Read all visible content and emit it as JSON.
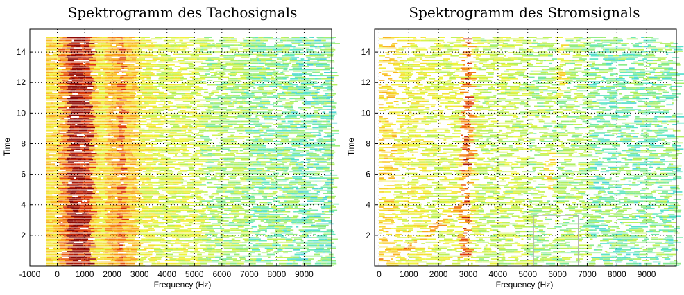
{
  "chart_data": [
    {
      "type": "heatmap",
      "title": "Spektrogramm des Tachosignals",
      "xlabel": "Frequency (Hz)",
      "ylabel": "Time",
      "xlim": [
        -1000,
        10000
      ],
      "ylim": [
        0,
        15.5
      ],
      "xticks": [
        "-1000",
        "0",
        "1000",
        "2000",
        "3000",
        "4000",
        "5000",
        "6000",
        "7000",
        "8000",
        "9000"
      ],
      "yticks": [
        "2",
        "4",
        "6",
        "8",
        "10",
        "12",
        "14"
      ],
      "grid": true,
      "data_range": {
        "x": [
          0,
          10000
        ],
        "y": [
          0,
          15
        ]
      },
      "bands": [
        {
          "x0": -400,
          "x1": 0,
          "level": 0.55
        },
        {
          "x0": 0,
          "x1": 320,
          "level": 0.75
        },
        {
          "x0": 320,
          "x1": 750,
          "level": 1.0
        },
        {
          "x0": 750,
          "x1": 1150,
          "level": 0.92
        },
        {
          "x0": 1150,
          "x1": 1350,
          "level": 0.6
        },
        {
          "x0": 1350,
          "x1": 1700,
          "level": 0.5
        },
        {
          "x0": 1700,
          "x1": 2150,
          "level": 0.65
        },
        {
          "x0": 2150,
          "x1": 2350,
          "level": 0.8
        },
        {
          "x0": 2350,
          "x1": 2800,
          "level": 0.6
        },
        {
          "x0": 2800,
          "x1": 3500,
          "level": 0.45
        },
        {
          "x0": 3500,
          "x1": 5200,
          "level": 0.4
        },
        {
          "x0": 5200,
          "x1": 6800,
          "level": 0.3
        },
        {
          "x0": 6800,
          "x1": 8500,
          "level": 0.25
        },
        {
          "x0": 8500,
          "x1": 10000,
          "level": 0.2
        }
      ],
      "ridges": []
    },
    {
      "type": "heatmap",
      "title": "Spektrogramm des Stromsignals",
      "xlabel": "Frequency (Hz)",
      "ylabel": "Time",
      "xlim": [
        -150,
        10000
      ],
      "ylim": [
        0,
        15.5
      ],
      "xticks": [
        "0",
        "1000",
        "2000",
        "3000",
        "4000",
        "5000",
        "6000",
        "7000",
        "8000",
        "9000"
      ],
      "yticks": [
        "2",
        "4",
        "6",
        "8",
        "10",
        "12",
        "14"
      ],
      "grid": true,
      "data_range": {
        "x": [
          0,
          10000
        ],
        "y": [
          0,
          15
        ]
      },
      "bands": [
        {
          "x0": 0,
          "x1": 500,
          "level": 0.55
        },
        {
          "x0": 500,
          "x1": 1500,
          "level": 0.45
        },
        {
          "x0": 1500,
          "x1": 2500,
          "level": 0.4
        },
        {
          "x0": 2500,
          "x1": 3200,
          "level": 0.42
        },
        {
          "x0": 3200,
          "x1": 5000,
          "level": 0.35
        },
        {
          "x0": 5000,
          "x1": 7000,
          "level": 0.3
        },
        {
          "x0": 7000,
          "x1": 10000,
          "level": 0.22
        }
      ],
      "ridges": [
        {
          "x": [
            2800,
            2850,
            2900
          ],
          "y": [
            0.5,
            8,
            15
          ],
          "level": 0.85
        },
        {
          "x": [
            0,
            1200,
            2600
          ],
          "y": [
            0.4,
            1.5,
            4
          ],
          "level": 0.75
        },
        {
          "x": [
            5600,
            5650,
            5700
          ],
          "y": [
            5,
            6.5,
            7.5
          ],
          "level": 0.6
        },
        {
          "x": [
            6000,
            6050,
            6100
          ],
          "y": [
            11,
            13,
            15
          ],
          "level": 0.55
        }
      ],
      "inset_box": {
        "x": [
          5200,
          6700
        ],
        "y": [
          0,
          3.3
        ]
      }
    }
  ]
}
